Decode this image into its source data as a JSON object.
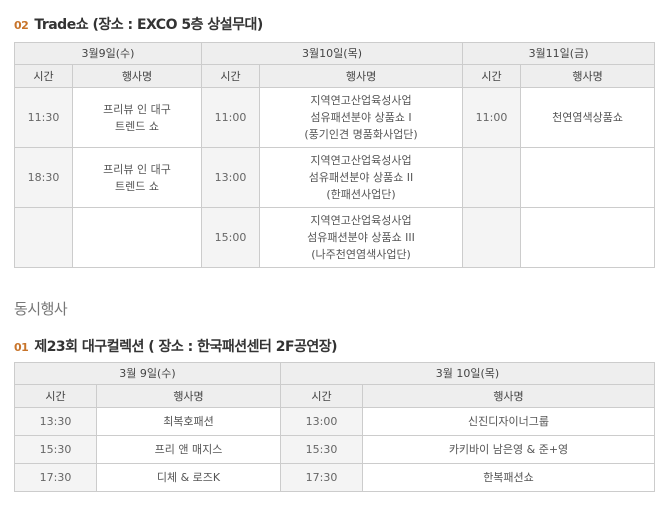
{
  "trade": {
    "num": "02",
    "title": "Trade쇼 (장소 : EXCO 5층 상설무대)",
    "days": [
      "3월9일(수)",
      "3월10일(목)",
      "3월11일(금)"
    ],
    "col_time": "시간",
    "col_event": "행사명",
    "rows": [
      [
        {
          "time": "11:30",
          "event": [
            "프리뷰 인 대구",
            "트렌드 쇼"
          ]
        },
        {
          "time": "11:00",
          "event": [
            "지역연고산업육성사업",
            "섬유패션분야 상품쇼 I",
            "(풍기인견 명품화사업단)"
          ]
        },
        {
          "time": "11:00",
          "event": [
            "천연염색상품쇼"
          ]
        }
      ],
      [
        {
          "time": "18:30",
          "event": [
            "프리뷰 인 대구",
            "트렌드 쇼"
          ]
        },
        {
          "time": "13:00",
          "event": [
            "지역연고산업육성사업",
            "섬유패션분야 상품쇼 II",
            "(한패션사업단)"
          ]
        },
        {
          "time": "",
          "event": []
        }
      ],
      [
        {
          "time": "",
          "event": []
        },
        {
          "time": "15:00",
          "event": [
            "지역연고산업육성사업",
            "섬유패션분야 상품쇼 III",
            "(나주천연염색사업단)"
          ]
        },
        {
          "time": "",
          "event": []
        }
      ]
    ]
  },
  "concurrent_heading": "동시행사",
  "collection": {
    "num": "01",
    "title": "제23회 대구컬렉션 ( 장소 : 한국패션센터 2F공연장)",
    "days": [
      "3월 9일(수)",
      "3월 10일(목)"
    ],
    "col_time": "시간",
    "col_event": "행사명",
    "rows": [
      [
        {
          "time": "13:30",
          "event": "최복호패션"
        },
        {
          "time": "13:00",
          "event": "신진디자이너그룹"
        }
      ],
      [
        {
          "time": "15:30",
          "event": "프리 앤 매지스"
        },
        {
          "time": "15:30",
          "event": "카키바이 남은영 & 준+영"
        }
      ],
      [
        {
          "time": "17:30",
          "event": "디체 & 로즈K"
        },
        {
          "time": "17:30",
          "event": "한복패션쇼"
        }
      ]
    ]
  },
  "colors": {
    "accent": "#c8742a",
    "header_bg": "#eeeeee",
    "time_bg": "#f4f4f4"
  }
}
